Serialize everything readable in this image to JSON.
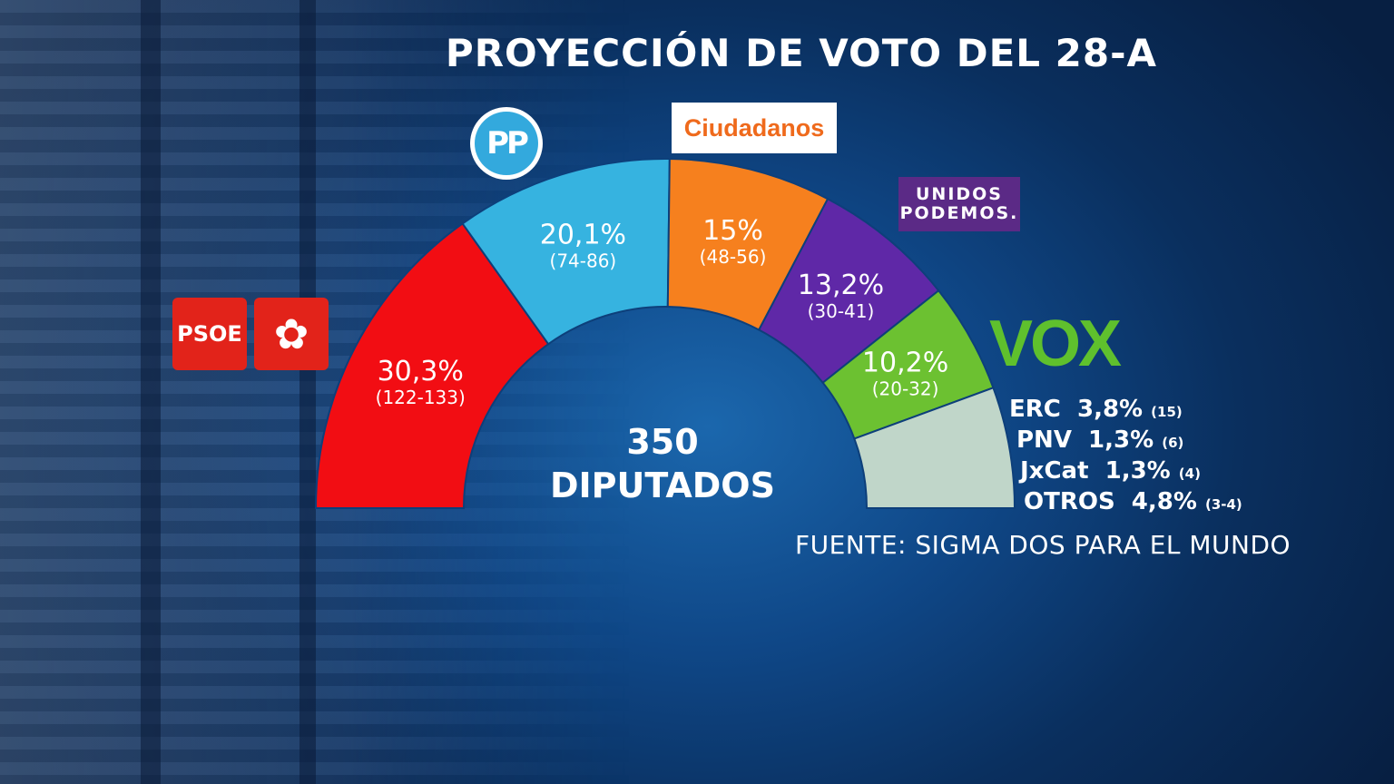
{
  "colors": {
    "PSOE": "#f20d13",
    "PP": "#36b3e0",
    "Ciudadanos": "#f6801e",
    "Unidas Podemos": "#5f28a7",
    "VOX": "#6cc131",
    "others": "#c0d6c9"
  },
  "title": "PROYECCIÓN DE VOTO DEL 28-A",
  "logos": {
    "psoe": "PSOE",
    "pp": "PP",
    "ciudadanos": "Ciudadanos",
    "podemos_line1": "UNIDOS",
    "podemos_line2": "PODEMOS.",
    "vox": "VOX"
  },
  "chart_data": {
    "type": "pie",
    "total_seats": "350",
    "total_label": "DIPUTADOS",
    "series": [
      {
        "party": "PSOE",
        "pct": 30.3,
        "label": "30,3%",
        "seats": "(122-133)"
      },
      {
        "party": "PP",
        "pct": 20.1,
        "label": "20,1%",
        "seats": "(74-86)"
      },
      {
        "party": "Ciudadanos",
        "pct": 15,
        "label": "15%",
        "seats": "(48-56)"
      },
      {
        "party": "Unidas Podemos",
        "pct": 13.2,
        "label": "13,2%",
        "seats": "(30-41)"
      },
      {
        "party": "VOX",
        "pct": 10.2,
        "label": "10,2%",
        "seats": "(20-32)"
      },
      {
        "party": "others",
        "pct": 11.2,
        "label": "",
        "seats": ""
      }
    ],
    "minor_parties": [
      {
        "name": "ERC",
        "pct": "3,8%",
        "seats": "(15)"
      },
      {
        "name": "PNV",
        "pct": "1,3%",
        "seats": "(6)"
      },
      {
        "name": "JxCat",
        "pct": "1,3%",
        "seats": "(4)"
      },
      {
        "name": "OTROS",
        "pct": "4,8%",
        "seats": "(3-4)"
      }
    ]
  },
  "source": "FUENTE: SIGMA DOS PARA EL MUNDO"
}
